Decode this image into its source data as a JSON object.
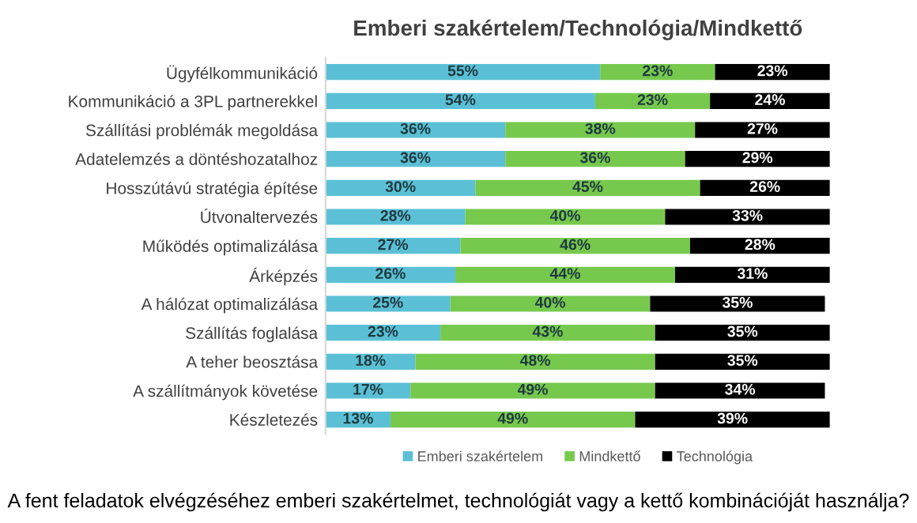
{
  "chart_data": {
    "type": "bar",
    "orientation": "horizontal",
    "stacked": true,
    "title": "Emberi szakértelem/Technológia/Mindkettő",
    "categories": [
      "Ügyfélkommunikáció",
      "Kommunikáció a 3PL partnerekkel",
      "Szállítási problémák megoldása",
      "Adatelemzés a döntéshozatalhoz",
      "Hosszútávú stratégia építése",
      "Útvonaltervezés",
      "Működés optimalizálása",
      "Árképzés",
      "A hálózat optimalizálása",
      "Szállítás foglalása",
      "A teher beosztása",
      "A szállítmányok követése",
      "Készletezés"
    ],
    "series": [
      {
        "name": "Emberi szakértelem",
        "color": "#5bc0d6",
        "values": [
          55,
          54,
          36,
          36,
          30,
          28,
          27,
          26,
          25,
          23,
          18,
          17,
          13
        ],
        "value_labels": [
          "55%",
          "54%",
          "36%",
          "36%",
          "30%",
          "28%",
          "27%",
          "26%",
          "25%",
          "23%",
          "18%",
          "17%",
          "13%"
        ]
      },
      {
        "name": "Mindkettő",
        "color": "#77c94e",
        "values": [
          23,
          23,
          38,
          36,
          45,
          40,
          46,
          44,
          40,
          43,
          48,
          49,
          49
        ],
        "value_labels": [
          "23%",
          "23%",
          "38%",
          "36%",
          "45%",
          "40%",
          "46%",
          "44%",
          "40%",
          "43%",
          "48%",
          "49%",
          "49%"
        ]
      },
      {
        "name": "Technológia",
        "color": "#000000",
        "values": [
          23,
          24,
          27,
          29,
          26,
          33,
          28,
          31,
          35,
          35,
          35,
          34,
          39
        ],
        "value_labels": [
          "23%",
          "24%",
          "27%",
          "29%",
          "26%",
          "33%",
          "28%",
          "31%",
          "35%",
          "35%",
          "35%",
          "34%",
          "39%"
        ]
      }
    ],
    "tick_labels": "y",
    "grid": false,
    "legend": "bottom",
    "annotations": [
      "A fent feladatok elvégzéséhez emberi szakértelmet, technológiát vagy a kettő kombinációját használja?"
    ]
  }
}
